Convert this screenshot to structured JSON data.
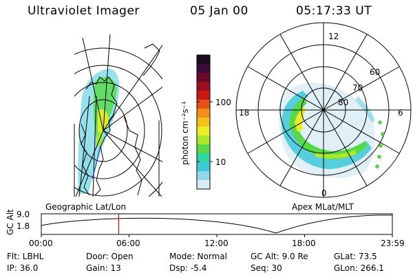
{
  "header": {
    "instrument": "Ultraviolet Imager",
    "date": "05 Jan 00",
    "time": "05:17:33 UT"
  },
  "colorbar": {
    "unit_label": "photon cm⁻²s⁻¹",
    "ticks": [
      "100",
      "10"
    ],
    "colors": [
      "#1b0b1b",
      "#3a0a3a",
      "#6a0a2a",
      "#9a1020",
      "#c81818",
      "#e8501a",
      "#f09018",
      "#f4c020",
      "#ecec28",
      "#a8e830",
      "#58d848",
      "#30d8a0",
      "#40c8d8",
      "#90d8e8",
      "#d8ecf4"
    ]
  },
  "left_panel": {
    "label": "Geographic Lat/Lon"
  },
  "right_panel": {
    "label": "Apex MLat/MLT",
    "mlt_labels": [
      "12",
      "18",
      "6",
      "0"
    ],
    "lat_labels": [
      "60",
      "70",
      "80"
    ]
  },
  "altitude_plot": {
    "ylabel": "GC Alt",
    "yticks": [
      "9.0",
      "1.8"
    ],
    "xticks": [
      "00:00",
      "06:00",
      "12:00",
      "18:00",
      "23:59"
    ],
    "marker_color": "#e00000",
    "marker_time_hours": 5.29
  },
  "info": {
    "row1": {
      "flt": "Flt: LBHL",
      "door": "Door: Open",
      "mode": "Mode: Normal",
      "gcalt": "GC Alt: 9.0 Re",
      "glat": "GLat:  73.5"
    },
    "row2": {
      "ip": "IP: 36.0",
      "gain": "Gain: 13",
      "dsp": "Dsp:    -5.4",
      "seq": "Seq: 30",
      "glon": "GLon: 266.1"
    }
  }
}
